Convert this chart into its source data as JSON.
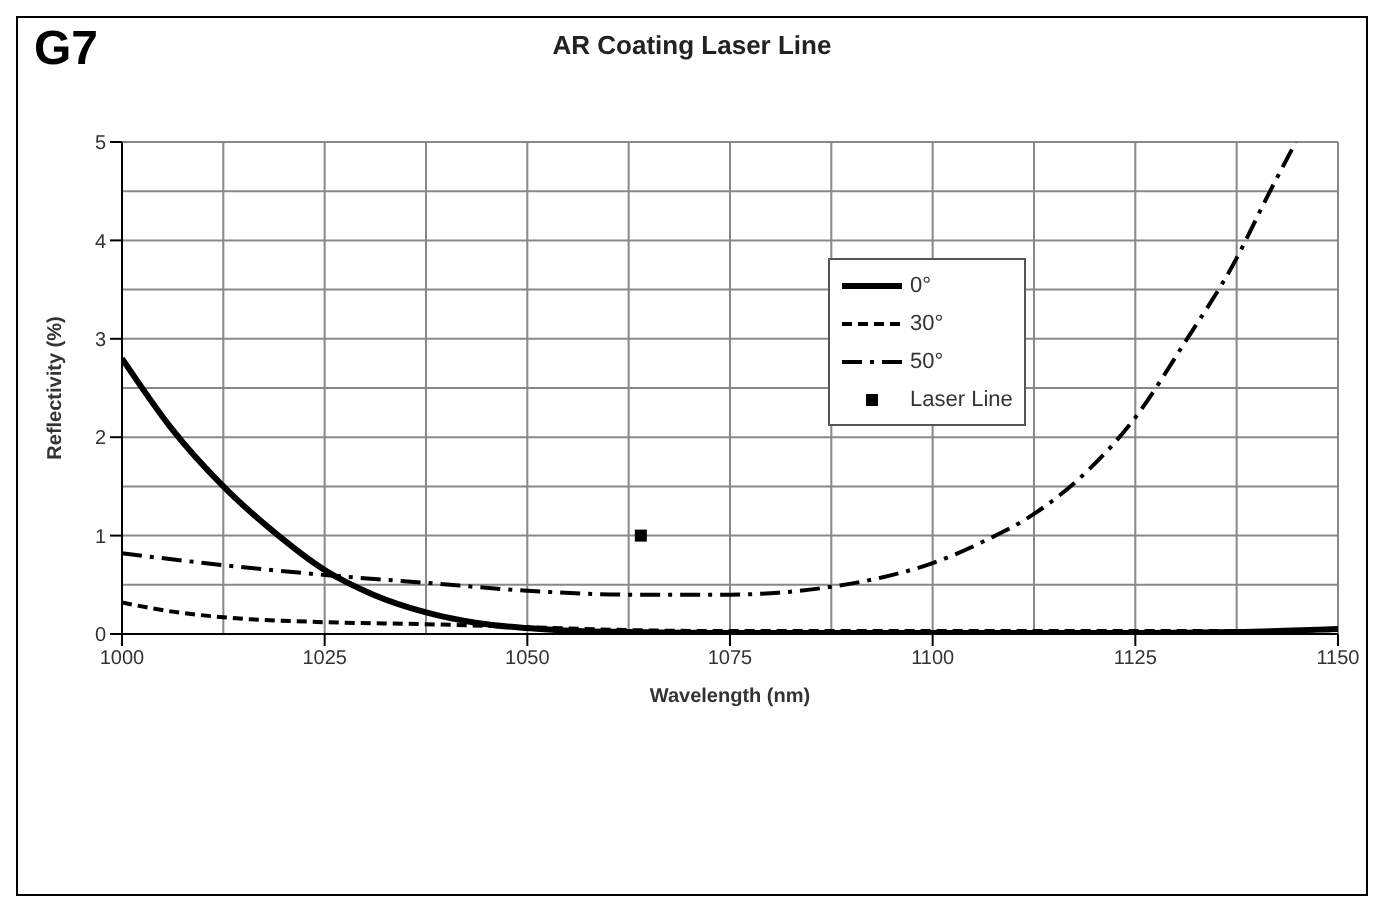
{
  "chart_data": {
    "type": "line",
    "title": "AR Coating Laser Line",
    "xlabel": "Wavelength (nm)",
    "ylabel": "Reflectivity (%)",
    "annotations": [
      "G7"
    ],
    "xlim": [
      1000,
      1150
    ],
    "xticks": [
      1000,
      1025,
      1050,
      1075,
      1100,
      1125,
      1150
    ],
    "ylim": [
      0,
      5
    ],
    "yticks": [
      0,
      1,
      2,
      3,
      4,
      5
    ],
    "grid": true,
    "legend": "top right",
    "marker": "none",
    "series": [
      {
        "name": "0°",
        "color": "#000000",
        "line_style": "solid",
        "x": [
          1000,
          1006,
          1012.5,
          1019,
          1025,
          1031,
          1037.5,
          1044,
          1050,
          1056,
          1062.5,
          1075,
          1087.5,
          1100,
          1112.5,
          1125,
          1137.5,
          1150
        ],
        "values": [
          2.8,
          2.1,
          1.5,
          1.02,
          0.65,
          0.4,
          0.22,
          0.11,
          0.06,
          0.03,
          0.02,
          0.01,
          0.01,
          0.01,
          0.01,
          0.01,
          0.02,
          0.05
        ]
      },
      {
        "name": "30°",
        "color": "#000000",
        "line_style": "dashed",
        "x": [
          1000,
          1006,
          1012.5,
          1025,
          1037.5,
          1050,
          1062.5,
          1075,
          1087.5,
          1100,
          1112.5,
          1125,
          1137.5,
          1150
        ],
        "values": [
          0.32,
          0.23,
          0.17,
          0.12,
          0.1,
          0.07,
          0.04,
          0.03,
          0.03,
          0.03,
          0.03,
          0.03,
          0.03,
          0.04
        ]
      },
      {
        "name": "50°",
        "color": "#000000",
        "line_style": "dashdot",
        "x": [
          1000,
          1012.5,
          1025,
          1037.5,
          1050,
          1062.5,
          1075,
          1081,
          1087.5,
          1094,
          1100,
          1106,
          1112.5,
          1119,
          1125,
          1131,
          1137.5,
          1141,
          1144.8
        ],
        "values": [
          0.82,
          0.7,
          0.6,
          0.52,
          0.44,
          0.4,
          0.4,
          0.42,
          0.48,
          0.58,
          0.72,
          0.93,
          1.22,
          1.65,
          2.2,
          2.95,
          3.82,
          4.4,
          5.0
        ]
      },
      {
        "name": "Laser Line",
        "type": "scatter",
        "color": "#000000",
        "marker": "square",
        "x": [
          1064
        ],
        "values": [
          1
        ]
      }
    ]
  }
}
